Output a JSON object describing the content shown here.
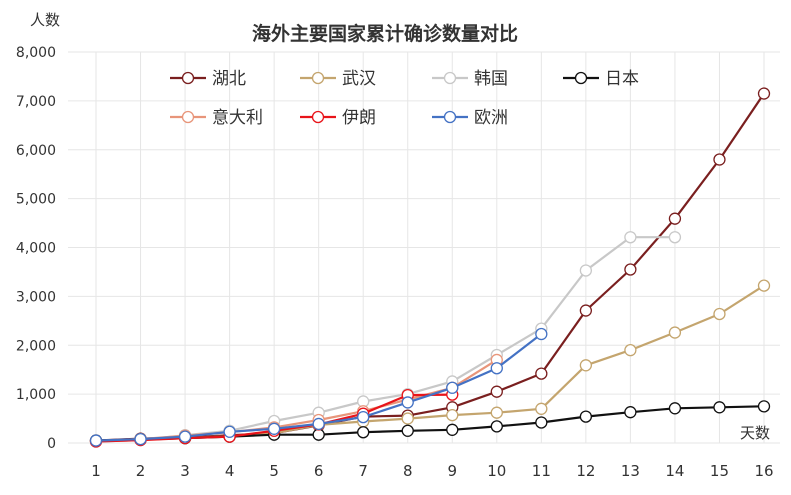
{
  "chart_data": {
    "type": "line",
    "title": "海外主要国家累计确诊数量对比",
    "ylabel": "人数",
    "xlabel": "天数",
    "x": [
      1,
      2,
      3,
      4,
      5,
      6,
      7,
      8,
      9,
      10,
      11,
      12,
      13,
      14,
      15,
      16
    ],
    "ylim": [
      0,
      8000
    ],
    "yticks": [
      0,
      1000,
      2000,
      3000,
      4000,
      5000,
      6000,
      7000,
      8000
    ],
    "ytick_labels": [
      "0",
      "1,000",
      "2,000",
      "3,000",
      "4,000",
      "5,000",
      "6,000",
      "7,000",
      "8,000"
    ],
    "grid": true,
    "legend_position": "top",
    "series": [
      {
        "name": "湖北",
        "color": "#7a1f1f",
        "values": [
          50,
          90,
          110,
          160,
          200,
          360,
          540,
          560,
          730,
          1050,
          1420,
          2710,
          3550,
          4590,
          5800,
          7150
        ]
      },
      {
        "name": "武汉",
        "color": "#c4a56e",
        "values": [
          40,
          80,
          100,
          140,
          200,
          370,
          440,
          500,
          570,
          620,
          700,
          1590,
          1900,
          2260,
          2640,
          3220
        ]
      },
      {
        "name": "韩国",
        "color": "#c8c8c8",
        "values": [
          30,
          60,
          160,
          250,
          450,
          620,
          850,
          1000,
          1260,
          1800,
          2340,
          3530,
          4210,
          4210,
          null,
          null
        ]
      },
      {
        "name": "日本",
        "color": "#111111",
        "values": [
          50,
          70,
          100,
          130,
          170,
          170,
          220,
          250,
          270,
          340,
          420,
          540,
          630,
          710,
          730,
          750
        ]
      },
      {
        "name": "意大利",
        "color": "#e8957a",
        "values": [
          40,
          80,
          150,
          220,
          320,
          470,
          650,
          890,
          1130,
          1700,
          null,
          null,
          null,
          null,
          null,
          null
        ]
      },
      {
        "name": "伊朗",
        "color": "#e8141a",
        "values": [
          30,
          60,
          100,
          130,
          250,
          380,
          600,
          980,
          990,
          null,
          null,
          null,
          null,
          null,
          null,
          null
        ]
      },
      {
        "name": "欧洲",
        "color": "#4472c4",
        "values": [
          50,
          80,
          130,
          230,
          290,
          390,
          530,
          830,
          1130,
          1530,
          2230,
          null,
          null,
          null,
          null,
          null
        ]
      }
    ]
  }
}
